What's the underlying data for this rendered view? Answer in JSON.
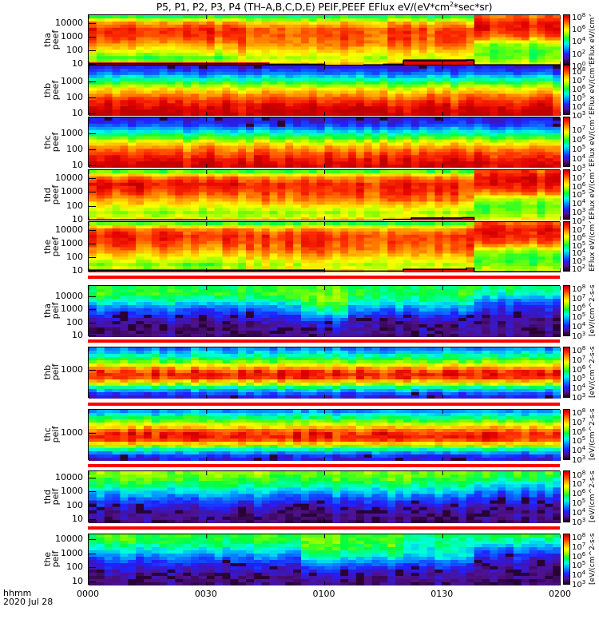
{
  "title": {
    "prefix": "P5, P1, P2, P3, P4 (TH–A,B,C,D,E) PEIF,PEEF EFlux eV/(eV*cm",
    "sup": "2",
    "suffix": "*sec*sr)"
  },
  "time_axis": {
    "ticks": [
      "0000",
      "0030",
      "0100",
      "0130",
      "0200"
    ],
    "tick_minutes": [
      0,
      30,
      60,
      90,
      120
    ],
    "label": "hhmm",
    "date": "2020 Jul 28"
  },
  "colors": {
    "flag_bar": "#ff0000",
    "scpot_line": "#000000"
  },
  "chart_data": [
    {
      "type": "heatmap",
      "probe": "tha",
      "product": "peef",
      "ylabel": [
        "tha",
        "peef"
      ],
      "yticks": [
        "10000",
        "1000",
        "100",
        "10"
      ],
      "ylim_log": [
        0.95,
        4.65
      ],
      "zlim_exp": [
        0,
        8.2
      ],
      "ztick_exp": [
        8,
        6,
        4,
        2,
        0
      ],
      "zlabel": "EFlux eV/(cm^2-sec-sr-eV)",
      "segments": [
        {
          "t": [
            0,
            38
          ],
          "levels": [
            0.45,
            0.8,
            0.92,
            0.9,
            0.8,
            0.7,
            0.55,
            0.72
          ]
        },
        {
          "t": [
            38,
            98
          ],
          "levels": [
            0.45,
            0.75,
            0.88,
            0.88,
            0.85,
            0.75,
            0.66,
            0.78
          ]
        },
        {
          "t": [
            98,
            120
          ],
          "levels": [
            0.82,
            0.93,
            0.92,
            0.85,
            0.6,
            0.55,
            0.58,
            0.7
          ]
        }
      ],
      "scpot": [
        [
          0,
          12
        ],
        [
          30,
          12
        ],
        [
          45,
          11
        ],
        [
          60,
          9
        ],
        [
          70,
          10
        ],
        [
          75,
          11
        ],
        [
          80,
          20
        ],
        [
          96,
          22
        ],
        [
          98,
          10
        ],
        [
          120,
          10
        ]
      ]
    },
    {
      "type": "heatmap",
      "probe": "thb",
      "product": "peef",
      "ylabel": [
        "thb",
        "peef"
      ],
      "yticks": [
        "1000",
        "100",
        "10"
      ],
      "ylim_log": [
        0.9,
        4.05
      ],
      "zlim_exp": [
        2.95,
        8.6
      ],
      "ztick_exp": [
        8,
        7,
        6,
        5,
        4,
        3
      ],
      "zlabel": "EFlux eV/(cm^2-sec-sr-eV)",
      "segments": [
        {
          "t": [
            0,
            120
          ],
          "levels": [
            0.15,
            0.25,
            0.45,
            0.65,
            0.8,
            0.9,
            0.97,
            1.0
          ]
        }
      ]
    },
    {
      "type": "heatmap",
      "probe": "thc",
      "product": "peef",
      "ylabel": [
        "thc",
        "peef"
      ],
      "yticks": [
        "1000",
        "100",
        "10"
      ],
      "ylim_log": [
        0.9,
        4.05
      ],
      "zlim_exp": [
        3,
        8.3
      ],
      "ztick_exp": [
        7,
        6,
        5,
        4,
        3
      ],
      "zlabel": "EFlux eV/(cm^2-sec-sr-eV)",
      "segments": [
        {
          "t": [
            0,
            120
          ],
          "levels": [
            0.15,
            0.22,
            0.4,
            0.6,
            0.78,
            0.88,
            0.95,
            1.0
          ]
        }
      ]
    },
    {
      "type": "heatmap",
      "probe": "thd",
      "product": "peef",
      "ylabel": [
        "thd",
        "peef"
      ],
      "yticks": [
        "10000",
        "1000",
        "100",
        "10"
      ],
      "ylim_log": [
        1.0,
        4.64
      ],
      "zlim_exp": [
        2,
        7.8
      ],
      "ztick_exp": [
        7,
        6,
        5,
        4,
        3,
        2
      ],
      "zlabel": "EFlux eV/(cm^2-sec-sr-eV)",
      "segments": [
        {
          "t": [
            0,
            40
          ],
          "levels": [
            0.5,
            0.85,
            0.95,
            0.9,
            0.8,
            0.7,
            0.6,
            0.75
          ]
        },
        {
          "t": [
            40,
            98
          ],
          "levels": [
            0.5,
            0.82,
            0.92,
            0.9,
            0.85,
            0.72,
            0.62,
            0.75
          ]
        },
        {
          "t": [
            98,
            120
          ],
          "levels": [
            0.85,
            0.95,
            0.93,
            0.85,
            0.62,
            0.55,
            0.58,
            0.7
          ]
        }
      ],
      "scpot": [
        [
          0,
          11
        ],
        [
          20,
          11
        ],
        [
          30,
          10
        ],
        [
          60,
          10
        ],
        [
          75,
          12
        ],
        [
          82,
          15
        ],
        [
          95,
          16
        ],
        [
          98,
          9
        ],
        [
          120,
          9
        ]
      ]
    },
    {
      "type": "heatmap",
      "probe": "the",
      "product": "peef",
      "ylabel": [
        "the",
        "peef"
      ],
      "yticks": [
        "10000",
        "1000",
        "100",
        "10"
      ],
      "ylim_log": [
        0.95,
        4.64
      ],
      "zlim_exp": [
        1.5,
        7.9
      ],
      "ztick_exp": [
        7,
        6,
        5,
        4,
        3,
        2
      ],
      "zlabel": "EFlux eV/(cm^2-sec-sr-eV)",
      "segments": [
        {
          "t": [
            0,
            40
          ],
          "levels": [
            0.5,
            0.85,
            0.93,
            0.88,
            0.8,
            0.7,
            0.58,
            0.75
          ]
        },
        {
          "t": [
            40,
            98
          ],
          "levels": [
            0.48,
            0.8,
            0.9,
            0.88,
            0.84,
            0.74,
            0.64,
            0.78
          ]
        },
        {
          "t": [
            98,
            120
          ],
          "levels": [
            0.85,
            0.95,
            0.93,
            0.85,
            0.62,
            0.55,
            0.58,
            0.7
          ]
        }
      ],
      "scpot": [
        [
          0,
          12
        ],
        [
          60,
          11
        ],
        [
          80,
          15
        ],
        [
          96,
          18
        ],
        [
          98,
          10
        ],
        [
          120,
          10
        ]
      ]
    },
    {
      "type": "heatmap",
      "probe": "tha",
      "product": "peif",
      "ylabel": [
        "tha",
        "peif"
      ],
      "yticks": [
        "10000",
        "1000",
        "100",
        "10"
      ],
      "ylim_log": [
        0.95,
        4.85
      ],
      "zlim_exp": [
        2.8,
        8.3
      ],
      "ztick_exp": [
        8,
        7,
        6,
        5,
        4,
        3
      ],
      "zlabel": "[eV/(cm^2-s-sr-eV)]",
      "segments": [
        {
          "t": [
            0,
            55
          ],
          "levels": [
            0.52,
            0.55,
            0.45,
            0.3,
            0.2,
            0.12,
            0.1,
            0.08
          ]
        },
        {
          "t": [
            55,
            66
          ],
          "levels": [
            0.55,
            0.6,
            0.58,
            0.5,
            0.35,
            0.2,
            0.12,
            0.1
          ]
        },
        {
          "t": [
            66,
            98
          ],
          "levels": [
            0.5,
            0.52,
            0.45,
            0.32,
            0.2,
            0.12,
            0.1,
            0.08
          ]
        },
        {
          "t": [
            98,
            120
          ],
          "levels": [
            0.5,
            0.45,
            0.3,
            0.2,
            0.15,
            0.1,
            0.1,
            0.08
          ]
        }
      ]
    },
    {
      "type": "heatmap",
      "probe": "thb",
      "product": "peif",
      "ylabel": [
        "thb",
        "peif"
      ],
      "yticks": [
        "1000"
      ],
      "ylim_log": [
        2.45,
        3.45
      ],
      "zlim_exp": [
        2.8,
        8.3
      ],
      "ztick_exp": [
        8,
        7,
        6,
        5,
        4,
        3
      ],
      "zlabel": "[eV/(cm^2-s-sr-eV)]",
      "segments": [
        {
          "t": [
            0,
            120
          ],
          "levels": [
            0.28,
            0.38,
            0.5,
            0.62,
            0.8,
            0.94,
            0.9,
            0.68,
            0.42,
            0.25,
            0.15
          ]
        }
      ]
    },
    {
      "type": "heatmap",
      "probe": "thc",
      "product": "peif",
      "ylabel": [
        "thc",
        "peif"
      ],
      "yticks": [
        "1000"
      ],
      "ylim_log": [
        2.47,
        3.47
      ],
      "zlim_exp": [
        2.8,
        8.3
      ],
      "ztick_exp": [
        8,
        7,
        6,
        5,
        4,
        3
      ],
      "zlabel": "[eV/(cm^2-s-sr-eV)]",
      "segments": [
        {
          "t": [
            0,
            120
          ],
          "levels": [
            0.3,
            0.42,
            0.55,
            0.7,
            0.85,
            0.95,
            0.88,
            0.65,
            0.4,
            0.22,
            0.15
          ]
        }
      ]
    },
    {
      "type": "heatmap",
      "probe": "thd",
      "product": "peif",
      "ylabel": [
        "thd",
        "peif"
      ],
      "yticks": [
        "10000",
        "1000",
        "100",
        "10"
      ],
      "ylim_log": [
        0.77,
        4.52
      ],
      "zlim_exp": [
        2.8,
        8.3
      ],
      "ztick_exp": [
        8,
        7,
        6,
        5,
        4,
        3
      ],
      "zlabel": "[eV/(cm^2-s-sr-eV)]",
      "segments": [
        {
          "t": [
            0,
            98
          ],
          "levels": [
            0.62,
            0.56,
            0.48,
            0.35,
            0.22,
            0.15,
            0.1,
            0.08
          ]
        },
        {
          "t": [
            98,
            120
          ],
          "levels": [
            0.56,
            0.5,
            0.38,
            0.25,
            0.18,
            0.12,
            0.1,
            0.08
          ]
        }
      ]
    },
    {
      "type": "heatmap",
      "probe": "the",
      "product": "peif",
      "ylabel": [
        "the",
        "peif"
      ],
      "yticks": [
        "10000",
        "1000",
        "100",
        "10"
      ],
      "ylim_log": [
        0.77,
        4.4
      ],
      "zlim_exp": [
        2.8,
        8.3
      ],
      "ztick_exp": [
        8,
        7,
        6,
        5,
        4,
        3
      ],
      "zlabel": "[eV/(cm^2-s-sr-eV)]",
      "segments": [
        {
          "t": [
            0,
            55
          ],
          "levels": [
            0.55,
            0.52,
            0.42,
            0.3,
            0.2,
            0.13,
            0.1,
            0.08
          ]
        },
        {
          "t": [
            55,
            80
          ],
          "levels": [
            0.58,
            0.58,
            0.54,
            0.45,
            0.3,
            0.18,
            0.12,
            0.1
          ]
        },
        {
          "t": [
            80,
            98
          ],
          "levels": [
            0.48,
            0.45,
            0.42,
            0.38,
            0.25,
            0.15,
            0.1,
            0.08
          ]
        },
        {
          "t": [
            98,
            120
          ],
          "levels": [
            0.55,
            0.45,
            0.3,
            0.2,
            0.14,
            0.1,
            0.1,
            0.08
          ]
        }
      ]
    }
  ]
}
